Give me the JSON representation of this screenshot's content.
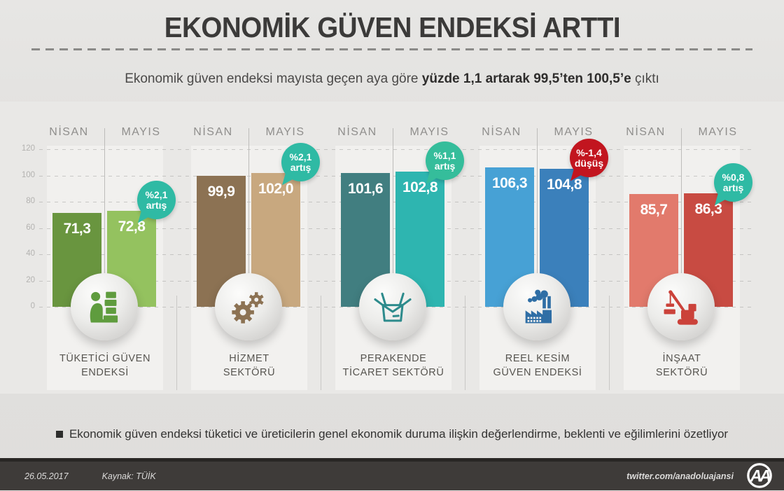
{
  "header": {
    "title": "EKONOMİK GÜVEN ENDEKSİ ARTTI",
    "subtitle_prefix": "Ekonomik güven endeksi mayısta geçen aya göre ",
    "subtitle_bold": "yüzde 1,1 artarak 99,5’ten 100,5’e",
    "subtitle_suffix": " çıktı"
  },
  "chart_data": {
    "type": "bar",
    "categories": [
      "NİSAN",
      "MAYIS"
    ],
    "ylim": [
      0,
      120
    ],
    "yticks": [
      "120",
      "100",
      "80",
      "60",
      "40",
      "20",
      "0"
    ],
    "grid": true,
    "legend_position": "none",
    "groups": [
      {
        "label_line1": "TÜKETİCİ GÜVEN",
        "label_line2": "ENDEKSİ",
        "nisan": 71.3,
        "mayis": 72.8,
        "nisan_display": "71,3",
        "mayis_display": "72,8",
        "nisan_color": "#69953f",
        "mayis_color": "#94c25f",
        "icon": "consumer-icon",
        "icon_color": "#5f9c3e",
        "badge": {
          "line1": "%2,1",
          "line2": "artış",
          "color": "#2fbaa4"
        }
      },
      {
        "label_line1": "HİZMET",
        "label_line2": "SEKTÖRÜ",
        "nisan": 99.9,
        "mayis": 102.0,
        "nisan_display": "99,9",
        "mayis_display": "102,0",
        "nisan_color": "#8c7253",
        "mayis_color": "#c8a87f",
        "icon": "gears-icon",
        "icon_color": "#8c7253",
        "badge": {
          "line1": "%2,1",
          "line2": "artış",
          "color": "#2fbaa4"
        }
      },
      {
        "label_line1": "PERAKENDE",
        "label_line2": "TİCARET SEKTÖRÜ",
        "nisan": 101.6,
        "mayis": 102.8,
        "nisan_display": "101,6",
        "mayis_display": "102,8",
        "nisan_color": "#417e80",
        "mayis_color": "#2eb5b0",
        "icon": "open-box-icon",
        "icon_color": "#2d8b8c",
        "badge": {
          "line1": "%1,1",
          "line2": "artış",
          "color": "#35bd9b"
        }
      },
      {
        "label_line1": "REEL KESİM",
        "label_line2": "GÜVEN ENDEKSİ",
        "nisan": 106.3,
        "mayis": 104.8,
        "nisan_display": "106,3",
        "mayis_display": "104,8",
        "nisan_color": "#47a1d5",
        "mayis_color": "#3b80bb",
        "icon": "factory-icon",
        "icon_color": "#2f6ea5",
        "badge": {
          "line1": "%-1,4",
          "line2": "düşüş",
          "color": "#c2151f"
        }
      },
      {
        "label_line1": "İNŞAAT",
        "label_line2": "SEKTÖRÜ",
        "nisan": 85.7,
        "mayis": 86.3,
        "nisan_display": "85,7",
        "mayis_display": "86,3",
        "nisan_color": "#e27a6c",
        "mayis_color": "#c84b42",
        "icon": "crane-icon",
        "icon_color": "#cb423a",
        "badge": {
          "line1": "%0,8",
          "line2": "artış",
          "color": "#2fbaa4"
        }
      }
    ]
  },
  "note": {
    "text": "Ekonomik güven endeksi tüketici ve üreticilerin genel ekonomik duruma ilişkin değerlendirme, beklenti ve eğilimlerini özetliyor"
  },
  "footer": {
    "date": "26.05.2017",
    "source": "Kaynak: TÜİK",
    "twitter": "twitter.com/anadoluajansi",
    "logo_text": "AA"
  }
}
